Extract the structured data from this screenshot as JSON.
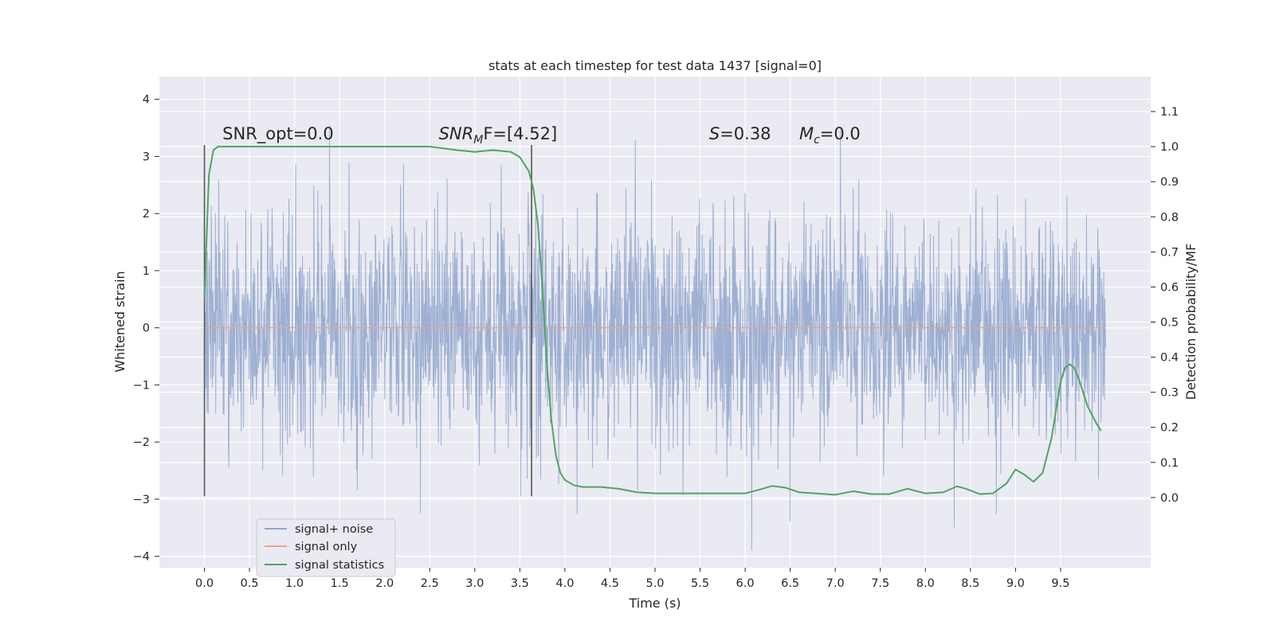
{
  "chart_data": {
    "type": "line",
    "title": "stats at each timestep for test data 1437 [signal=0]",
    "xlabel": "Time (s)",
    "ylabel": "Whitened strain",
    "y2label": "Detection probability/MF",
    "xlim": [
      -0.5,
      10.5
    ],
    "ylim": [
      -4.2,
      4.4
    ],
    "y2lim": [
      -0.2,
      1.2
    ],
    "x_ticks": [
      "0.0",
      "0.5",
      "1.0",
      "1.5",
      "2.0",
      "2.5",
      "3.0",
      "3.5",
      "4.0",
      "4.5",
      "5.0",
      "5.5",
      "6.0",
      "6.5",
      "7.0",
      "7.5",
      "8.0",
      "8.5",
      "9.0",
      "9.5"
    ],
    "y_ticks": [
      "4",
      "3",
      "2",
      "1",
      "0",
      "−1",
      "−2",
      "−3",
      "−4"
    ],
    "y2_ticks": [
      "1.1",
      "1.0",
      "0.9",
      "0.8",
      "0.7",
      "0.6",
      "0.5",
      "0.4",
      "0.3",
      "0.2",
      "0.1",
      "0.0"
    ],
    "grid": true,
    "legend_position": "lower-left",
    "series": [
      {
        "name": "signal+ noise",
        "axis": "left",
        "color": "#8fa5cc",
        "description_range": [
          -3.0,
          3.0
        ],
        "x_range": [
          0.0,
          10.0
        ]
      },
      {
        "name": "signal only",
        "axis": "left",
        "color": "#e8a58c",
        "x": [
          0.0,
          10.0
        ],
        "y": [
          0.0,
          0.0
        ]
      },
      {
        "name": "signal statistics",
        "axis": "right",
        "color": "#4fa55f",
        "x": [
          0.0,
          0.05,
          0.1,
          0.15,
          0.2,
          0.3,
          0.5,
          1.0,
          1.5,
          2.0,
          2.5,
          2.8,
          3.0,
          3.2,
          3.4,
          3.5,
          3.55,
          3.6,
          3.65,
          3.7,
          3.75,
          3.8,
          3.85,
          3.9,
          3.95,
          4.0,
          4.1,
          4.2,
          4.4,
          4.6,
          4.8,
          5.0,
          5.5,
          6.0,
          6.15,
          6.3,
          6.45,
          6.6,
          7.0,
          7.2,
          7.4,
          7.6,
          7.8,
          8.0,
          8.2,
          8.35,
          8.45,
          8.6,
          8.75,
          8.9,
          9.0,
          9.1,
          9.2,
          9.3,
          9.4,
          9.5,
          9.55,
          9.6,
          9.65,
          9.7,
          9.75,
          9.8,
          9.9,
          9.95
        ],
        "y": [
          0.57,
          0.92,
          0.99,
          1.0,
          1.0,
          1.0,
          1.0,
          1.0,
          1.0,
          1.0,
          1.0,
          0.99,
          0.985,
          0.99,
          0.985,
          0.97,
          0.95,
          0.93,
          0.88,
          0.78,
          0.6,
          0.38,
          0.22,
          0.12,
          0.07,
          0.05,
          0.035,
          0.03,
          0.03,
          0.025,
          0.015,
          0.012,
          0.012,
          0.012,
          0.022,
          0.033,
          0.028,
          0.015,
          0.008,
          0.018,
          0.01,
          0.01,
          0.025,
          0.012,
          0.015,
          0.032,
          0.025,
          0.01,
          0.012,
          0.04,
          0.08,
          0.065,
          0.045,
          0.07,
          0.17,
          0.33,
          0.37,
          0.38,
          0.37,
          0.34,
          0.3,
          0.26,
          0.21,
          0.19
        ]
      }
    ],
    "vlines": [
      {
        "x": 0.0,
        "ymin": -2.95,
        "ymax": 3.2
      },
      {
        "x": 3.63,
        "ymin": -2.95,
        "ymax": 3.2
      }
    ],
    "annotations": [
      {
        "x": 0.2,
        "y": 3.3,
        "main": "SNR_opt=0.0",
        "italic": "",
        "sub": "",
        "rest": ""
      },
      {
        "x": 2.6,
        "y": 3.3,
        "main": "",
        "italic": "SNR",
        "sub": "M",
        "rest": "F=[4.52]"
      },
      {
        "x": 5.6,
        "y": 3.3,
        "main": "",
        "italic": "S",
        "sub": "",
        "rest": "=0.38"
      },
      {
        "x": 6.6,
        "y": 3.3,
        "main": "",
        "italic": "M",
        "sub": "c",
        "rest": "=0.0"
      }
    ]
  }
}
